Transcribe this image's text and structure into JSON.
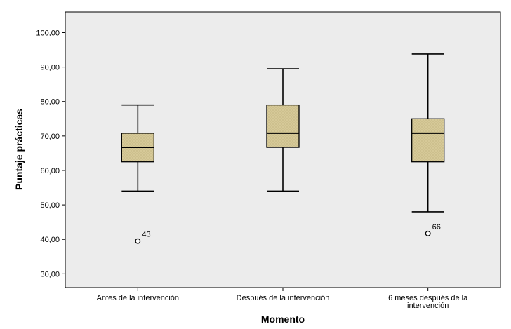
{
  "chart_data": {
    "type": "boxplot",
    "xlabel": "Momento",
    "ylabel": "Puntaje prácticas",
    "ylim": [
      26,
      106
    ],
    "yticks": [
      30,
      40,
      50,
      60,
      70,
      80,
      90,
      100
    ],
    "ytick_labels": [
      "30,00",
      "40,00",
      "50,00",
      "60,00",
      "70,00",
      "80,00",
      "90,00",
      "100,00"
    ],
    "grid": false,
    "plot_background": "#ececec",
    "box_color": "#d6c998",
    "categories": [
      {
        "label_lines": [
          "Antes de la intervención"
        ],
        "min": 54,
        "q1": 62.5,
        "median": 66.7,
        "q3": 70.8,
        "max": 79,
        "outliers": [
          {
            "value": 39.5,
            "label": "43"
          }
        ]
      },
      {
        "label_lines": [
          "Después de la intervención"
        ],
        "min": 54,
        "q1": 66.7,
        "median": 70.8,
        "q3": 79,
        "max": 89.5,
        "outliers": []
      },
      {
        "label_lines": [
          "6 meses después de la",
          "intervención"
        ],
        "min": 48,
        "q1": 62.5,
        "median": 70.8,
        "q3": 75,
        "max": 93.8,
        "outliers": [
          {
            "value": 41.7,
            "label": "66"
          }
        ]
      }
    ]
  }
}
